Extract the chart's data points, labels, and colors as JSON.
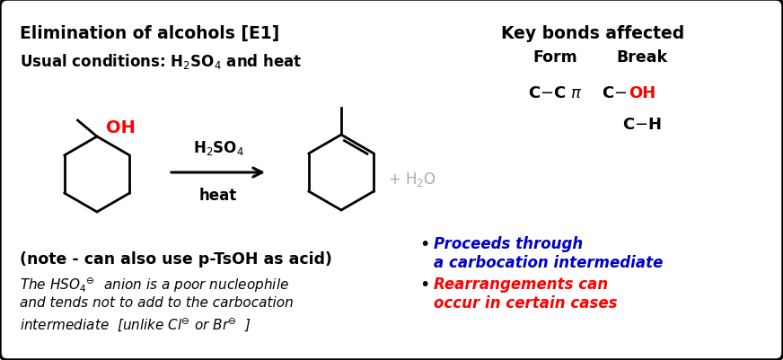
{
  "bg_color": "#ffffff",
  "border_color": "#000000",
  "red_color": "#ff0000",
  "blue_color": "#0000cc",
  "gray_color": "#aaaaaa",
  "black_color": "#000000",
  "title": "Elimination of alcohols [E1]",
  "key_bonds_title": "Key bonds affected",
  "form_label": "Form",
  "break_label": "Break",
  "reagent1": "H₂SO₄",
  "reagent2": "heat",
  "plus_h2o": "+ H₂O",
  "note": "(note - can also use p-TsOH as acid)",
  "bullet1_line1": "Proceeds through",
  "bullet1_line2": "a carbocation intermediate",
  "bullet2_line1": "Rearrangements can",
  "bullet2_line2": "occur in certain cases"
}
